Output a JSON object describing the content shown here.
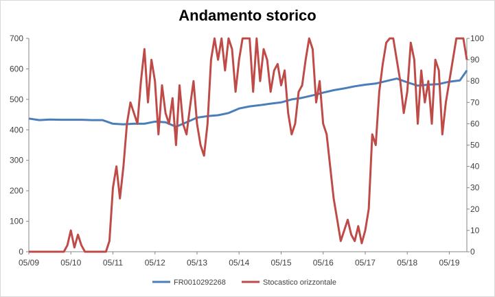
{
  "chart_data": {
    "type": "line",
    "title": "Andamento storico",
    "x_tick_labels": [
      "05/09",
      "05/10",
      "05/11",
      "05/12",
      "05/13",
      "05/14",
      "05/15",
      "05/16",
      "05/17",
      "05/18",
      "05/19"
    ],
    "x_range": [
      "2009-05",
      "2019-10"
    ],
    "y_left": {
      "ylim": [
        0,
        700
      ],
      "ticks": [
        0,
        100,
        200,
        300,
        400,
        500,
        600,
        700
      ]
    },
    "y_right": {
      "ylim": [
        0,
        100
      ],
      "ticks": [
        0,
        10,
        20,
        30,
        40,
        50,
        60,
        70,
        80,
        90,
        100
      ]
    },
    "grid": false,
    "legend": "bottom",
    "series": [
      {
        "name": "FR0010292268",
        "axis": "left",
        "color": "#4a7ebb",
        "x": [
          "2009-05",
          "2009-08",
          "2009-11",
          "2010-02",
          "2010-05",
          "2010-08",
          "2010-11",
          "2011-02",
          "2011-05",
          "2011-08",
          "2011-11",
          "2012-02",
          "2012-05",
          "2012-08",
          "2012-11",
          "2013-02",
          "2013-05",
          "2013-08",
          "2013-11",
          "2014-02",
          "2014-05",
          "2014-08",
          "2014-11",
          "2015-02",
          "2015-05",
          "2015-08",
          "2015-11",
          "2016-02",
          "2016-05",
          "2016-08",
          "2016-11",
          "2017-02",
          "2017-05",
          "2017-08",
          "2017-11",
          "2018-02",
          "2018-05",
          "2018-08",
          "2018-11",
          "2019-02",
          "2019-05",
          "2019-08",
          "2019-10"
        ],
        "values": [
          437,
          432,
          434,
          433,
          433,
          433,
          432,
          432,
          420,
          418,
          420,
          420,
          427,
          425,
          410,
          425,
          440,
          445,
          448,
          455,
          470,
          477,
          481,
          486,
          490,
          500,
          505,
          513,
          522,
          530,
          536,
          543,
          548,
          552,
          560,
          568,
          556,
          545,
          548,
          550,
          558,
          562,
          595
        ]
      },
      {
        "name": "Stocastico orizzontale",
        "axis": "right",
        "color": "#be4b48",
        "x": [
          "2009-05",
          "2009-09",
          "2010-01",
          "2010-03",
          "2010-04",
          "2010-05",
          "2010-06",
          "2010-07",
          "2010-08",
          "2010-09",
          "2010-10",
          "2010-11",
          "2011-01",
          "2011-03",
          "2011-04",
          "2011-05",
          "2011-06",
          "2011-07",
          "2011-08",
          "2011-09",
          "2011-10",
          "2011-11",
          "2011-12",
          "2012-01",
          "2012-02",
          "2012-03",
          "2012-04",
          "2012-05",
          "2012-06",
          "2012-07",
          "2012-08",
          "2012-09",
          "2012-10",
          "2012-11",
          "2012-12",
          "2013-01",
          "2013-02",
          "2013-03",
          "2013-04",
          "2013-05",
          "2013-06",
          "2013-07",
          "2013-08",
          "2013-09",
          "2013-10",
          "2013-11",
          "2013-12",
          "2014-01",
          "2014-02",
          "2014-03",
          "2014-04",
          "2014-05",
          "2014-06",
          "2014-07",
          "2014-08",
          "2014-09",
          "2014-10",
          "2014-11",
          "2014-12",
          "2015-01",
          "2015-02",
          "2015-03",
          "2015-04",
          "2015-05",
          "2015-06",
          "2015-07",
          "2015-08",
          "2015-09",
          "2015-10",
          "2015-11",
          "2015-12",
          "2016-01",
          "2016-02",
          "2016-03",
          "2016-04",
          "2016-05",
          "2016-06",
          "2016-07",
          "2016-08",
          "2016-09",
          "2016-10",
          "2016-11",
          "2016-12",
          "2017-01",
          "2017-02",
          "2017-03",
          "2017-04",
          "2017-05",
          "2017-06",
          "2017-07",
          "2017-08",
          "2017-09",
          "2017-10",
          "2017-11",
          "2017-12",
          "2018-01",
          "2018-02",
          "2018-03",
          "2018-04",
          "2018-05",
          "2018-06",
          "2018-07",
          "2018-08",
          "2018-09",
          "2018-10",
          "2018-11",
          "2018-12",
          "2019-01",
          "2019-02",
          "2019-03",
          "2019-04",
          "2019-05",
          "2019-06",
          "2019-07",
          "2019-08",
          "2019-09",
          "2019-10"
        ],
        "values": [
          0,
          0,
          0,
          0,
          3,
          10,
          2,
          8,
          3,
          0,
          0,
          0,
          0,
          0,
          5,
          30,
          40,
          25,
          40,
          60,
          70,
          65,
          60,
          80,
          95,
          70,
          90,
          80,
          55,
          78,
          65,
          60,
          72,
          50,
          78,
          60,
          55,
          68,
          80,
          60,
          50,
          45,
          60,
          90,
          100,
          90,
          100,
          85,
          100,
          95,
          75,
          90,
          100,
          100,
          100,
          75,
          100,
          80,
          95,
          90,
          75,
          85,
          88,
          78,
          85,
          65,
          55,
          60,
          75,
          78,
          90,
          100,
          95,
          70,
          80,
          60,
          55,
          40,
          25,
          15,
          5,
          10,
          15,
          8,
          5,
          12,
          4,
          10,
          20,
          55,
          50,
          75,
          88,
          98,
          100,
          100,
          90,
          80,
          65,
          75,
          98,
          90,
          60,
          85,
          70,
          80,
          60,
          90,
          85,
          55,
          70,
          80,
          90,
          100,
          100,
          100,
          90
        ]
      }
    ]
  }
}
